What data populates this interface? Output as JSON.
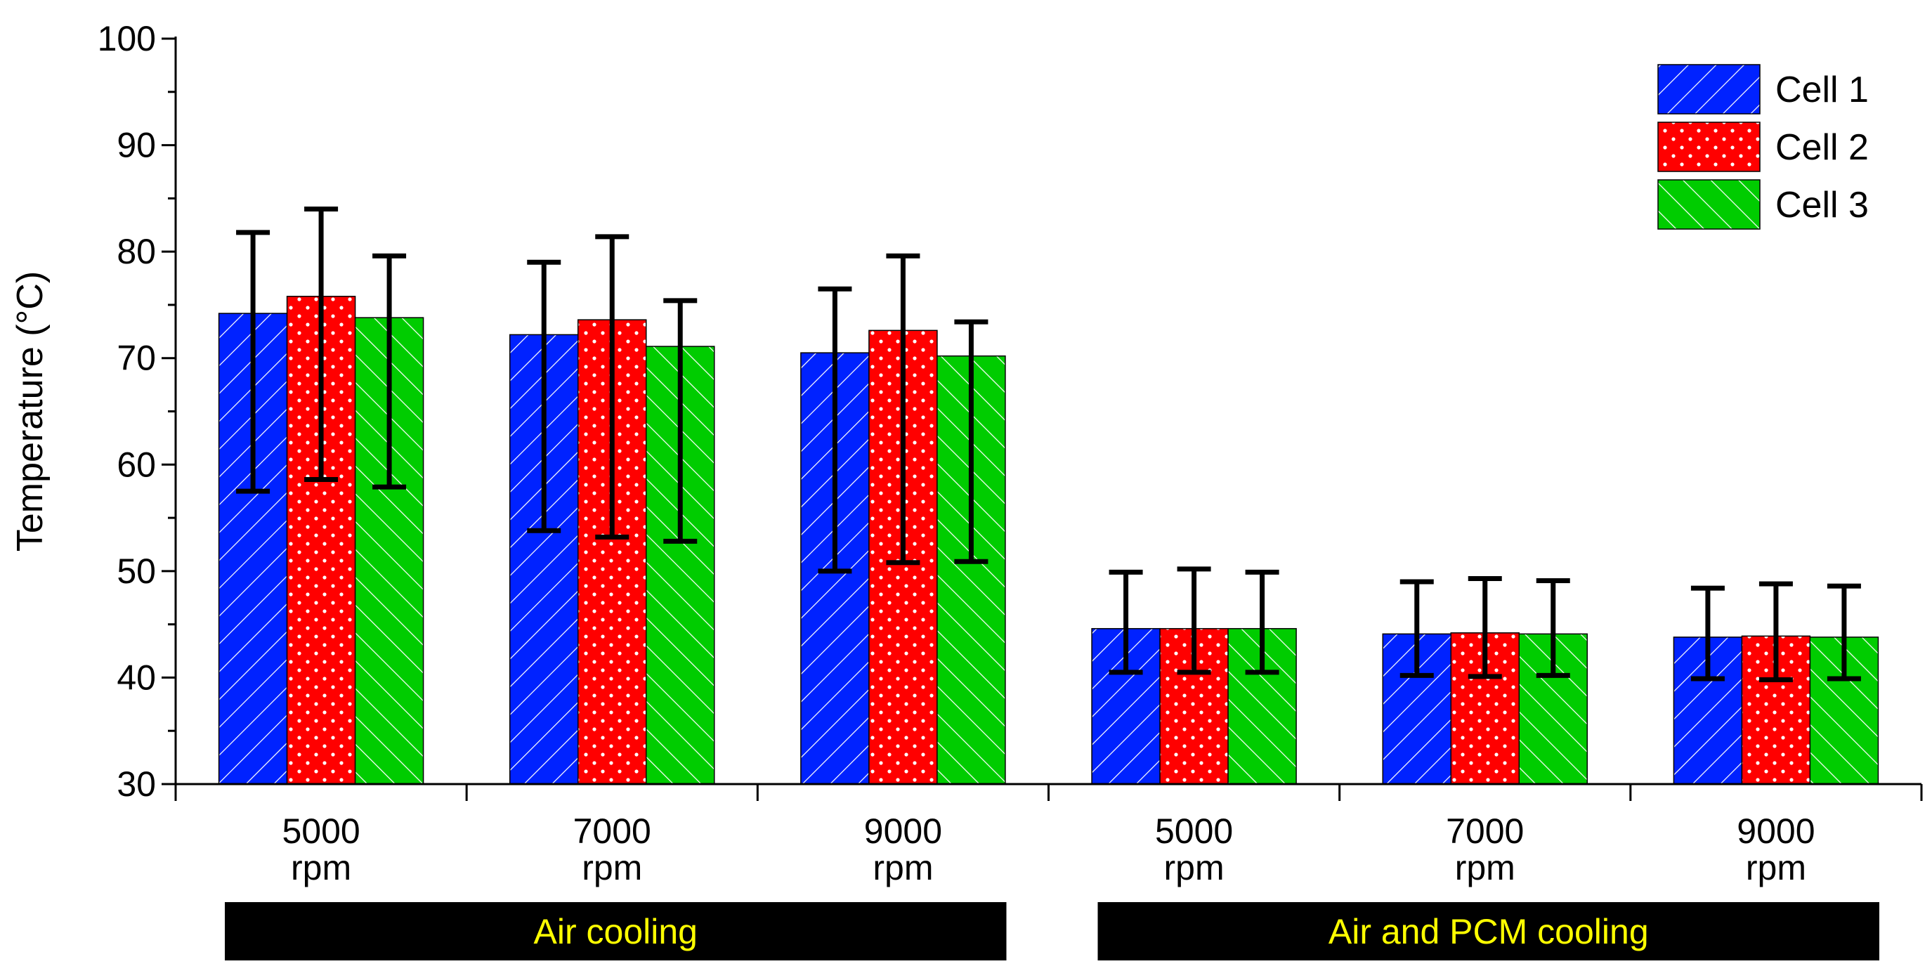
{
  "chart_data": {
    "type": "bar",
    "title": "",
    "xlabel": "",
    "ylabel": "Temperature (°C)",
    "ylim": [
      30,
      100
    ],
    "yticks": [
      30,
      40,
      50,
      60,
      70,
      80,
      90,
      100
    ],
    "grid": false,
    "legend_position": "top-right",
    "categories": [
      {
        "line1": "5000",
        "line2": "rpm"
      },
      {
        "line1": "7000",
        "line2": "rpm"
      },
      {
        "line1": "9000",
        "line2": "rpm"
      },
      {
        "line1": "5000",
        "line2": "rpm"
      },
      {
        "line1": "7000",
        "line2": "rpm"
      },
      {
        "line1": "9000",
        "line2": "rpm"
      }
    ],
    "groups": [
      {
        "label": "Air cooling",
        "categories": [
          0,
          1,
          2
        ]
      },
      {
        "label": "Air and PCM cooling",
        "categories": [
          3,
          4,
          5
        ]
      }
    ],
    "series": [
      {
        "name": "Cell 1",
        "color": "#0022ff",
        "pattern": "forward-diagonal",
        "values": [
          74.2,
          72.2,
          70.5,
          44.6,
          44.1,
          43.8
        ],
        "err_low": [
          57.5,
          53.8,
          50.0,
          40.5,
          40.2,
          39.9
        ],
        "err_high": [
          81.8,
          79.0,
          76.5,
          49.9,
          49.0,
          48.4
        ]
      },
      {
        "name": "Cell 2",
        "color": "#ff0000",
        "pattern": "dots",
        "values": [
          75.8,
          73.6,
          72.6,
          44.6,
          44.2,
          43.9
        ],
        "err_low": [
          58.6,
          53.2,
          50.8,
          40.5,
          40.1,
          39.8
        ],
        "err_high": [
          84.0,
          81.4,
          79.6,
          50.2,
          49.3,
          48.8
        ]
      },
      {
        "name": "Cell 3",
        "color": "#00cc00",
        "pattern": "backward-diagonal",
        "values": [
          73.8,
          71.1,
          70.2,
          44.6,
          44.1,
          43.8
        ],
        "err_low": [
          57.9,
          52.8,
          50.9,
          40.5,
          40.2,
          39.9
        ],
        "err_high": [
          79.6,
          75.4,
          73.4,
          49.9,
          49.1,
          48.6
        ]
      }
    ],
    "group_label_style": {
      "background": "#000000",
      "text_color": "#ffff00"
    }
  }
}
